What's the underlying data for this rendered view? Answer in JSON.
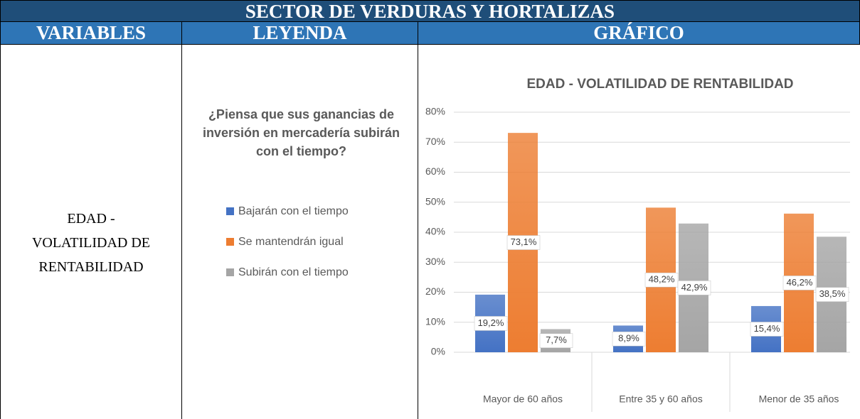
{
  "header": {
    "title": "SECTOR DE VERDURAS Y HORTALIZAS",
    "columns": [
      "VARIABLES",
      "LEYENDA",
      "GRÁFICO"
    ]
  },
  "variable": {
    "lines": [
      "EDAD -",
      "VOLATILIDAD DE",
      "RENTABILIDAD"
    ]
  },
  "legend": {
    "question": "¿Piensa que sus ganancias de inversión en mercadería subirán con el tiempo?"
  },
  "chart_data": {
    "type": "bar",
    "title": "EDAD - VOLATILIDAD DE RENTABILIDAD",
    "categories": [
      "Mayor de 60 años",
      "Entre 35 y 60 años",
      "Menor de 35 años"
    ],
    "series": [
      {
        "name": "Bajarán con el tiempo",
        "color": "#4472c4",
        "values": [
          19.2,
          8.9,
          15.4
        ],
        "value_labels": [
          "19,2%",
          "8,9%",
          "15,4%"
        ]
      },
      {
        "name": "Se mantendrán igual",
        "color": "#ed7d31",
        "values": [
          73.1,
          48.2,
          46.2
        ],
        "value_labels": [
          "73,1%",
          "48,2%",
          "46,2%"
        ]
      },
      {
        "name": "Subirán con el tiempo",
        "color": "#a5a5a5",
        "values": [
          7.7,
          42.9,
          38.5
        ],
        "value_labels": [
          "7,7%",
          "42,9%",
          "38,5%"
        ]
      }
    ],
    "ylim": [
      0,
      80
    ],
    "yticks": [
      {
        "value": 0,
        "label": "0%"
      },
      {
        "value": 10,
        "label": "10%"
      },
      {
        "value": 20,
        "label": "20%"
      },
      {
        "value": 30,
        "label": "30%"
      },
      {
        "value": 40,
        "label": "40%"
      },
      {
        "value": 50,
        "label": "50%"
      },
      {
        "value": 60,
        "label": "60%"
      },
      {
        "value": 70,
        "label": "70%"
      },
      {
        "value": 80,
        "label": "80%"
      }
    ],
    "grid": true
  }
}
